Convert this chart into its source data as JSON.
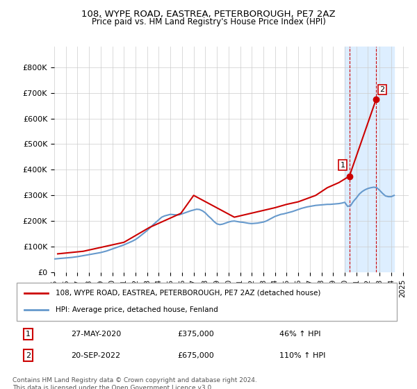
{
  "title_line1": "108, WYPE ROAD, EASTREA, PETERBOROUGH, PE7 2AZ",
  "title_line2": "Price paid vs. HM Land Registry's House Price Index (HPI)",
  "ylabel": "",
  "xlabel": "",
  "ylim": [
    0,
    880000
  ],
  "yticks": [
    0,
    100000,
    200000,
    300000,
    400000,
    500000,
    600000,
    700000,
    800000
  ],
  "ytick_labels": [
    "£0",
    "£100K",
    "£200K",
    "£300K",
    "£400K",
    "£500K",
    "£600K",
    "£700K",
    "£800K"
  ],
  "hpi_color": "#6699cc",
  "price_color": "#cc0000",
  "shade_color": "#ddeeff",
  "grid_color": "#cccccc",
  "background_color": "#ffffff",
  "legend_label_price": "108, WYPE ROAD, EASTREA, PETERBOROUGH, PE7 2AZ (detached house)",
  "legend_label_hpi": "HPI: Average price, detached house, Fenland",
  "annotation1_label": "1",
  "annotation1_date": "27-MAY-2020",
  "annotation1_price": "£375,000",
  "annotation1_pct": "46% ↑ HPI",
  "annotation2_label": "2",
  "annotation2_date": "20-SEP-2022",
  "annotation2_price": "£675,000",
  "annotation2_pct": "110% ↑ HPI",
  "footer": "Contains HM Land Registry data © Crown copyright and database right 2024.\nThis data is licensed under the Open Government Licence v3.0.",
  "hpi_years": [
    1995,
    1995.25,
    1995.5,
    1995.75,
    1996,
    1996.25,
    1996.5,
    1996.75,
    1997,
    1997.25,
    1997.5,
    1997.75,
    1998,
    1998.25,
    1998.5,
    1998.75,
    1999,
    1999.25,
    1999.5,
    1999.75,
    2000,
    2000.25,
    2000.5,
    2000.75,
    2001,
    2001.25,
    2001.5,
    2001.75,
    2002,
    2002.25,
    2002.5,
    2002.75,
    2003,
    2003.25,
    2003.5,
    2003.75,
    2004,
    2004.25,
    2004.5,
    2004.75,
    2005,
    2005.25,
    2005.5,
    2005.75,
    2006,
    2006.25,
    2006.5,
    2006.75,
    2007,
    2007.25,
    2007.5,
    2007.75,
    2008,
    2008.25,
    2008.5,
    2008.75,
    2009,
    2009.25,
    2009.5,
    2009.75,
    2010,
    2010.25,
    2010.5,
    2010.75,
    2011,
    2011.25,
    2011.5,
    2011.75,
    2012,
    2012.25,
    2012.5,
    2012.75,
    2013,
    2013.25,
    2013.5,
    2013.75,
    2014,
    2014.25,
    2014.5,
    2014.75,
    2015,
    2015.25,
    2015.5,
    2015.75,
    2016,
    2016.25,
    2016.5,
    2016.75,
    2017,
    2017.25,
    2017.5,
    2017.75,
    2018,
    2018.25,
    2018.5,
    2018.75,
    2019,
    2019.25,
    2019.5,
    2019.75,
    2020,
    2020.25,
    2020.5,
    2020.75,
    2021,
    2021.25,
    2021.5,
    2021.75,
    2022,
    2022.25,
    2022.5,
    2022.75,
    2023,
    2023.25,
    2023.5,
    2023.75,
    2024,
    2024.25
  ],
  "hpi_values": [
    52000,
    53000,
    54000,
    55000,
    56000,
    57000,
    58000,
    59500,
    61000,
    63000,
    65000,
    67000,
    69000,
    71000,
    73000,
    75000,
    77000,
    80000,
    83000,
    87000,
    91000,
    95000,
    99000,
    103000,
    107000,
    112000,
    117000,
    122000,
    128000,
    136000,
    145000,
    154000,
    163000,
    174000,
    185000,
    195000,
    205000,
    215000,
    220000,
    223000,
    226000,
    225000,
    224000,
    224000,
    228000,
    232000,
    236000,
    240000,
    243000,
    246000,
    245000,
    240000,
    232000,
    220000,
    210000,
    198000,
    189000,
    186000,
    188000,
    192000,
    196000,
    199000,
    200000,
    198000,
    196000,
    195000,
    193000,
    191000,
    190000,
    191000,
    192000,
    194000,
    196000,
    200000,
    206000,
    212000,
    218000,
    222000,
    226000,
    228000,
    231000,
    234000,
    237000,
    241000,
    245000,
    249000,
    252000,
    255000,
    257000,
    259000,
    261000,
    262000,
    263000,
    264000,
    265000,
    265000,
    266000,
    267000,
    268000,
    270000,
    273000,
    257000,
    260000,
    277000,
    290000,
    305000,
    315000,
    322000,
    327000,
    330000,
    332000,
    330000,
    320000,
    308000,
    298000,
    295000,
    295000,
    300000
  ],
  "price_years": [
    1995.3,
    1997.5,
    2001.0,
    2003.2,
    2005.9,
    2007.0,
    2010.5,
    2014.0,
    2015.0,
    2016.0,
    2017.5,
    2018.5,
    2019.5,
    2020.4,
    2022.7
  ],
  "price_values": [
    72000,
    82000,
    117000,
    175000,
    230000,
    300000,
    215000,
    252000,
    265000,
    275000,
    300000,
    330000,
    350000,
    375000,
    675000
  ],
  "sale1_year": 2020.4,
  "sale1_value": 375000,
  "sale2_year": 2022.7,
  "sale2_value": 675000,
  "shade_start": 2020.0,
  "shade_end": 2024.25,
  "xtick_years": [
    1995,
    1996,
    1997,
    1998,
    1999,
    2000,
    2001,
    2002,
    2003,
    2004,
    2005,
    2006,
    2007,
    2008,
    2009,
    2010,
    2011,
    2012,
    2013,
    2014,
    2015,
    2016,
    2017,
    2018,
    2019,
    2020,
    2021,
    2022,
    2023,
    2024,
    2025
  ]
}
